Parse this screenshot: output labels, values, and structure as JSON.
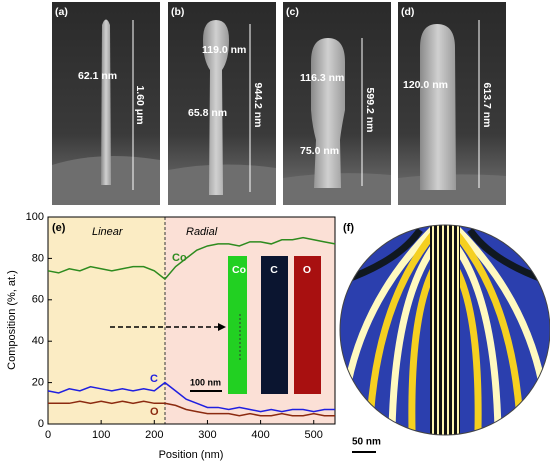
{
  "panels": [
    {
      "label": "(a)",
      "width": "62.1 nm",
      "length": "1.60 μm"
    },
    {
      "label": "(b)",
      "top": "119.0 nm",
      "width": "65.8 nm",
      "length": "944.2 nm"
    },
    {
      "label": "(c)",
      "top": "116.3 nm",
      "width": "75.0 nm",
      "length": "599.2 nm"
    },
    {
      "label": "(d)",
      "top": "120.0 nm",
      "length": "613.7 nm"
    }
  ],
  "chart_data": {
    "type": "line",
    "panel_label": "(e)",
    "regions": [
      "Linear",
      "Radial"
    ],
    "x_label": "Position (nm)",
    "y_label": "Composition (%, at.)",
    "x": [
      0,
      20,
      40,
      60,
      80,
      100,
      120,
      140,
      160,
      180,
      200,
      220,
      240,
      260,
      280,
      300,
      320,
      340,
      360,
      380,
      400,
      420,
      440,
      460,
      480,
      500,
      520,
      540
    ],
    "series": [
      {
        "name": "Co",
        "color": "#2e8b1f",
        "values": [
          74,
          73,
          75,
          74,
          76,
          75,
          74,
          75,
          76,
          76,
          74,
          70,
          76,
          80,
          84,
          86,
          87,
          87,
          86,
          88,
          88,
          87,
          89,
          89,
          90,
          89,
          88,
          87
        ]
      },
      {
        "name": "C",
        "color": "#1f1fe0",
        "values": [
          16,
          15,
          17,
          16,
          18,
          17,
          16,
          17,
          16,
          17,
          16,
          20,
          16,
          12,
          10,
          8,
          8,
          7,
          8,
          7,
          6,
          7,
          6,
          7,
          7,
          6,
          7,
          7
        ]
      },
      {
        "name": "O",
        "color": "#8b2a10",
        "values": [
          10,
          10,
          10,
          11,
          10,
          11,
          10,
          11,
          10,
          11,
          10,
          10,
          9,
          7,
          6,
          5,
          5,
          5,
          4,
          5,
          4,
          4,
          5,
          4,
          4,
          5,
          4,
          4
        ]
      }
    ],
    "xlim": [
      0,
      540
    ],
    "xticks": [
      0,
      100,
      200,
      300,
      400,
      500
    ],
    "ylim": [
      0,
      100
    ],
    "yticks": [
      0,
      20,
      40,
      60,
      80,
      100
    ],
    "inset": {
      "maps": [
        "Co",
        "C",
        "O"
      ],
      "scale": "100 nm"
    }
  },
  "map_panel": {
    "label": "(f)",
    "scale": "50 nm"
  }
}
